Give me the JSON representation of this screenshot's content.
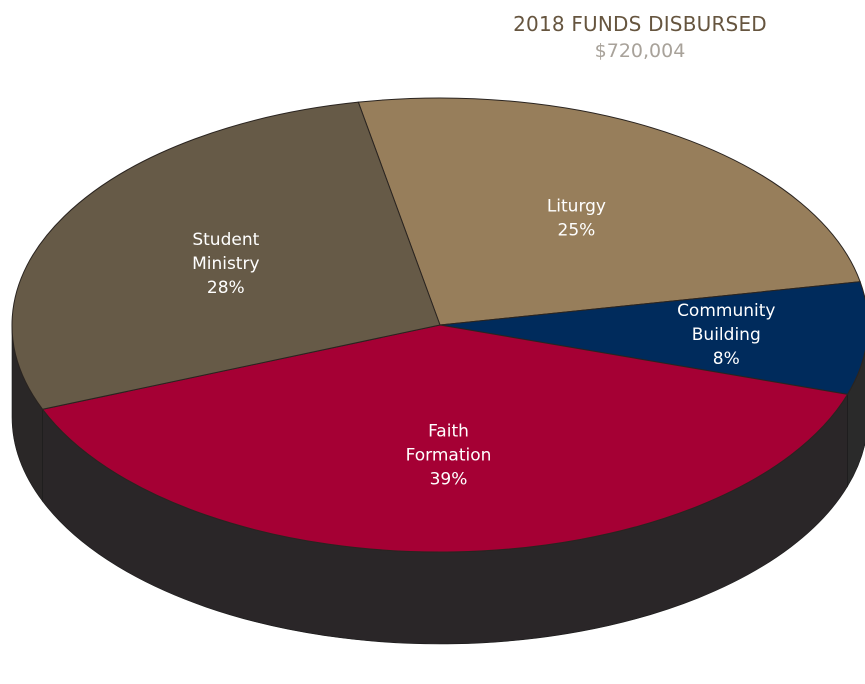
{
  "chart_data": {
    "type": "pie",
    "title": "2018 FUNDS DISBURSED",
    "subtitle": "$720,004",
    "slices": [
      {
        "label_lines": [
          "Liturgy"
        ],
        "percent_label": "25%",
        "value": 25,
        "color": "#977e5b",
        "side_color": "#5e4e38"
      },
      {
        "label_lines": [
          "Community",
          "Building"
        ],
        "percent_label": "8%",
        "value": 8,
        "color": "#002b5c",
        "side_color": "#2a2a2a"
      },
      {
        "label_lines": [
          "Faith",
          "Formation"
        ],
        "percent_label": "39%",
        "value": 39,
        "color": "#a50034",
        "side_color": "#2a2628"
      },
      {
        "label_lines": [
          "Student",
          "Ministry"
        ],
        "percent_label": "28%",
        "value": 28,
        "color": "#665a47",
        "side_color": "#2a2727"
      }
    ],
    "colors": {
      "title": "#66553f",
      "subtitle": "#a8a29a",
      "label": "#ffffff"
    }
  }
}
